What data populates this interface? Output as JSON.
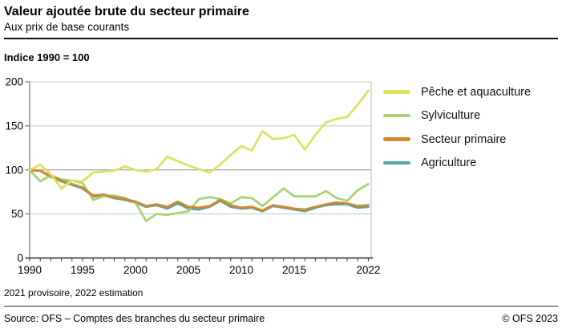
{
  "header": {
    "title": "Valeur ajoutée brute du secteur primaire",
    "subtitle": "Aux prix de base courants"
  },
  "axis_note": "Indice 1990 = 100",
  "legend": [
    {
      "id": "peche-et-aquaculture",
      "label": "Pêche et aquaculture",
      "color": "#dde25f"
    },
    {
      "id": "sylviculture",
      "label": "Sylviculture",
      "color": "#a6d573"
    },
    {
      "id": "secteur-primaire",
      "label": "Secteur primaire",
      "color": "#d6862e"
    },
    {
      "id": "agriculture",
      "label": "Agriculture",
      "color": "#4fa8a0"
    }
  ],
  "footnote": "2021 provisoire, 2022 estimation",
  "footer": {
    "source": "Source: OFS – Comptes des branches du secteur primaire",
    "copyright": "© OFS 2023"
  },
  "chart_data": {
    "type": "line",
    "title": "Valeur ajoutée brute du secteur primaire",
    "subtitle": "Aux prix de base courants",
    "index_note": "Indice 1990 = 100",
    "x_start": 1990,
    "x_end": 2022,
    "x": [
      1990,
      1991,
      1992,
      1993,
      1994,
      1995,
      1996,
      1997,
      1998,
      1999,
      2000,
      2001,
      2002,
      2003,
      2004,
      2005,
      2006,
      2007,
      2008,
      2009,
      2010,
      2011,
      2012,
      2013,
      2014,
      2015,
      2016,
      2017,
      2018,
      2019,
      2020,
      2021,
      2022
    ],
    "series": [
      {
        "id": "peche-et-aquaculture",
        "name": "Pêche et aquaculture",
        "values": [
          100,
          106,
          95,
          79,
          88,
          87,
          97,
          98,
          99,
          104,
          100,
          98,
          101,
          115,
          110,
          105,
          101,
          97,
          106,
          117,
          127,
          122,
          144,
          135,
          136,
          140,
          123,
          140,
          154,
          158,
          160,
          174,
          190
        ]
      },
      {
        "id": "sylviculture",
        "name": "Sylviculture",
        "values": [
          100,
          87,
          94,
          89,
          88,
          85,
          66,
          70,
          71,
          68,
          63,
          42,
          50,
          49,
          51,
          53,
          67,
          69,
          67,
          62,
          69,
          68,
          59,
          69,
          79,
          70,
          70,
          70,
          76,
          68,
          65,
          77,
          84
        ]
      },
      {
        "id": "secteur-primaire",
        "name": "Secteur primaire",
        "values": [
          100,
          99,
          93,
          88,
          84,
          80,
          71,
          72,
          69,
          67,
          64,
          59,
          61,
          58,
          64,
          58,
          57,
          59,
          66,
          60,
          57,
          58,
          54,
          60,
          58,
          56,
          55,
          58,
          61,
          63,
          62,
          59,
          60
        ]
      },
      {
        "id": "agriculture",
        "name": "Agriculture",
        "values": [
          100,
          99,
          92,
          87,
          83,
          79,
          70,
          71,
          68,
          66,
          63,
          58,
          60,
          56,
          62,
          56,
          55,
          58,
          65,
          58,
          56,
          57,
          53,
          59,
          57,
          55,
          53,
          57,
          60,
          61,
          61,
          57,
          58
        ]
      }
    ],
    "ylim": [
      0,
      200
    ],
    "yticks": [
      0,
      50,
      100,
      150,
      200
    ],
    "xticks_labeled": [
      1990,
      1995,
      2000,
      2005,
      2010,
      2015,
      2022
    ],
    "xticks_minor_every": 1,
    "grid": true,
    "emphasized_gridline": 100,
    "legend_position": "right",
    "colors": {
      "grid_light": "#c7c7c7",
      "grid_emphasis": "#8c8c8c",
      "axis": "#000000",
      "plot_border": "#b9b9b9",
      "left_border": "#555555"
    }
  }
}
